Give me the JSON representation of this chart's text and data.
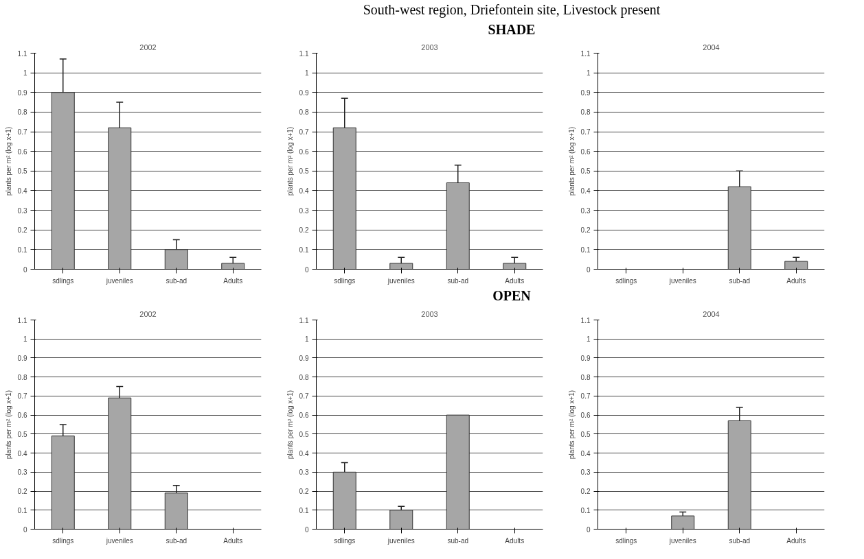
{
  "chart_data": [
    {
      "type": "bar",
      "title": "2002",
      "annotations": [
        "South-west region, Driefontein site, Livestock present",
        "SHADE"
      ],
      "ylabel": "plants per m² (log x+1)",
      "categories": [
        "sdlings",
        "juveniles",
        "sub-ad",
        "Adults"
      ],
      "values": [
        0.9,
        0.72,
        0.1,
        0.03
      ],
      "errors": [
        [
          0.9,
          1.07
        ],
        [
          0.72,
          0.85
        ],
        [
          0.1,
          0.15
        ],
        [
          0.03,
          0.06
        ]
      ],
      "color": "#a6a6a6",
      "ylim": [
        0,
        1.1
      ],
      "yticks": [
        0,
        0.1,
        0.2,
        0.3,
        0.4,
        0.5,
        0.6,
        0.7,
        0.8,
        0.9,
        1,
        1.1
      ],
      "grid": "y"
    },
    {
      "type": "bar",
      "title": "2003",
      "ylabel": "plants per m² (log x+1)",
      "categories": [
        "sdlings",
        "juveniles",
        "sub-ad",
        "Adults"
      ],
      "values": [
        0.72,
        0.03,
        0.44,
        0.03
      ],
      "errors": [
        [
          0.72,
          0.87
        ],
        [
          0.03,
          0.06
        ],
        [
          0.44,
          0.53
        ],
        [
          0.03,
          0.06
        ]
      ],
      "color": "#a6a6a6",
      "ylim": [
        0,
        1.1
      ],
      "yticks": [
        0,
        0.1,
        0.2,
        0.3,
        0.4,
        0.5,
        0.6,
        0.7,
        0.8,
        0.9,
        1,
        1.1
      ],
      "grid": "y"
    },
    {
      "type": "bar",
      "title": "2004",
      "ylabel": "plants per m² (log x+1)",
      "categories": [
        "sdlings",
        "juveniles",
        "sub-ad",
        "Adults"
      ],
      "values": [
        0,
        0,
        0.42,
        0.04
      ],
      "errors": [
        null,
        null,
        [
          0.42,
          0.5
        ],
        [
          0.04,
          0.06
        ]
      ],
      "color": "#a6a6a6",
      "ylim": [
        0,
        1.1
      ],
      "yticks": [
        0,
        0.1,
        0.2,
        0.3,
        0.4,
        0.5,
        0.6,
        0.7,
        0.8,
        0.9,
        1,
        1.1
      ],
      "grid": "y"
    },
    {
      "type": "bar",
      "title": "2002",
      "annotations": [
        "OPEN"
      ],
      "ylabel": "plants per m² (log x+1)",
      "categories": [
        "sdlings",
        "juveniles",
        "sub-ad",
        "Adults"
      ],
      "values": [
        0.49,
        0.69,
        0.19,
        0
      ],
      "errors": [
        [
          0.49,
          0.55
        ],
        [
          0.69,
          0.75
        ],
        [
          0.19,
          0.23
        ],
        null
      ],
      "color": "#a6a6a6",
      "ylim": [
        0,
        1.1
      ],
      "yticks": [
        0,
        0.1,
        0.2,
        0.3,
        0.4,
        0.5,
        0.6,
        0.7,
        0.8,
        0.9,
        1,
        1.1
      ],
      "grid": "y"
    },
    {
      "type": "bar",
      "title": "2003",
      "ylabel": "plants per m² (log x+1)",
      "categories": [
        "sdlings",
        "juveniles",
        "sub-ad",
        "Adults"
      ],
      "values": [
        0.3,
        0.1,
        0.6,
        0
      ],
      "errors": [
        [
          0.3,
          0.35
        ],
        [
          0.1,
          0.12
        ],
        null,
        null
      ],
      "color": "#a6a6a6",
      "ylim": [
        0,
        1.1
      ],
      "yticks": [
        0,
        0.1,
        0.2,
        0.3,
        0.4,
        0.5,
        0.6,
        0.7,
        0.8,
        0.9,
        1,
        1.1
      ],
      "grid": "y"
    },
    {
      "type": "bar",
      "title": "2004",
      "ylabel": "plants per m² (log x+1)",
      "categories": [
        "sdlings",
        "juveniles",
        "sub-ad",
        "Adults"
      ],
      "values": [
        0,
        0.07,
        0.57,
        0
      ],
      "errors": [
        null,
        [
          0.07,
          0.09
        ],
        [
          0.57,
          0.64
        ],
        null
      ],
      "color": "#a6a6a6",
      "ylim": [
        0,
        1.1
      ],
      "yticks": [
        0,
        0.1,
        0.2,
        0.3,
        0.4,
        0.5,
        0.6,
        0.7,
        0.8,
        0.9,
        1,
        1.1
      ],
      "grid": "y"
    }
  ]
}
